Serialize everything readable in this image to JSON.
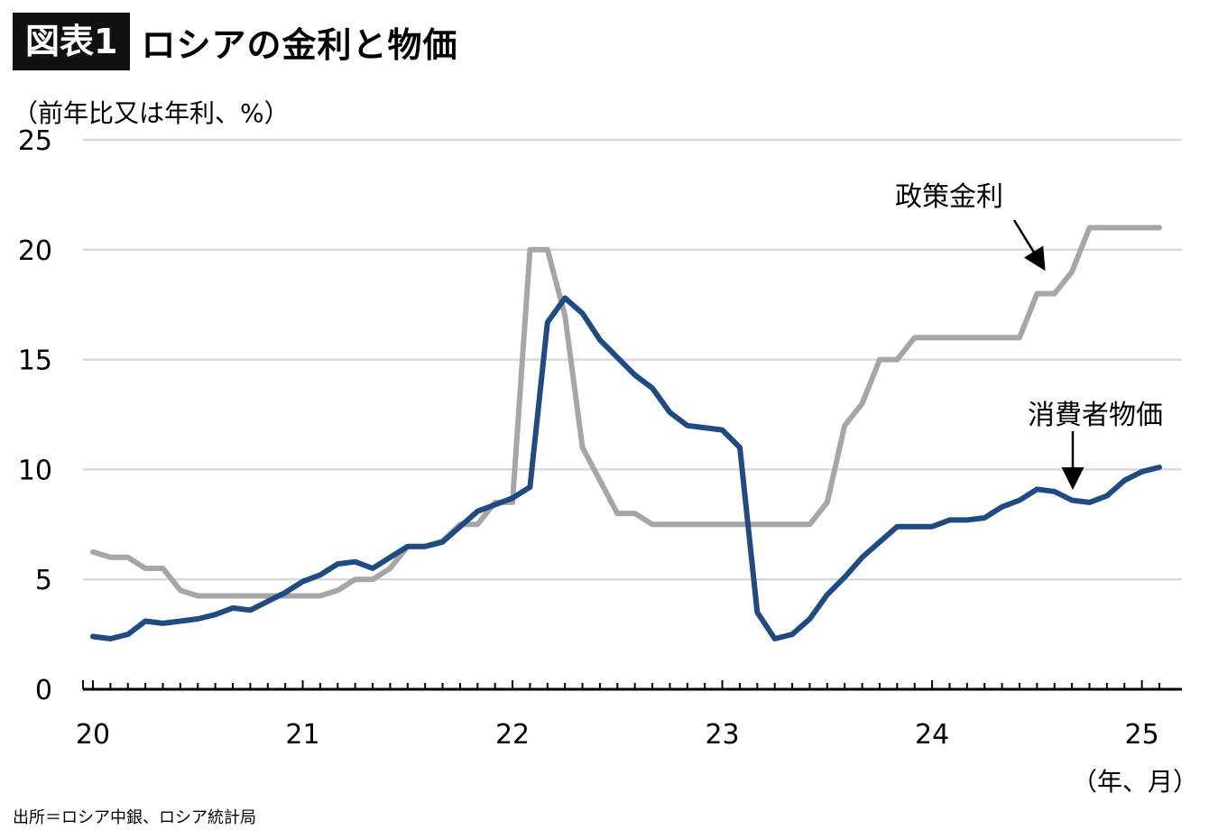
{
  "header": {
    "badge": "図表1",
    "title": "ロシアの金利と物価"
  },
  "unit_label": "（前年比又は年利、%）",
  "x_unit": "（年、月）",
  "source": "出所＝ロシア中銀、ロシア統計局",
  "colors": {
    "policy_rate": "#a6a6a6",
    "cpi": "#1f4a82",
    "grid": "#d9d9d9"
  },
  "chart_data": {
    "type": "line",
    "title": "ロシアの金利と物価",
    "ylim": [
      0,
      25
    ],
    "yticks": [
      0,
      5,
      10,
      15,
      20,
      25
    ],
    "xlim": [
      0,
      61
    ],
    "x_tick_labels": [
      "20",
      "21",
      "22",
      "23",
      "24",
      "25"
    ],
    "x_tick_positions": [
      0,
      12,
      24,
      36,
      48,
      60
    ],
    "grid": true,
    "series": [
      {
        "name": "政策金利",
        "color": "#a6a6a6",
        "x": [
          0,
          1,
          2,
          3,
          4,
          5,
          6,
          7,
          8,
          9,
          10,
          11,
          12,
          13,
          14,
          15,
          16,
          17,
          18,
          19,
          20,
          21,
          22,
          23,
          24,
          25,
          26,
          27,
          28,
          29,
          30,
          31,
          32,
          33,
          34,
          35,
          36,
          37,
          38,
          39,
          40,
          41,
          42,
          43,
          44,
          45,
          46,
          47,
          48,
          49,
          50,
          51,
          52,
          53,
          54,
          55,
          56,
          57,
          58,
          59,
          60,
          61
        ],
        "values": [
          6.25,
          6,
          6,
          5.5,
          5.5,
          4.5,
          4.25,
          4.25,
          4.25,
          4.25,
          4.25,
          4.25,
          4.25,
          4.25,
          4.5,
          5,
          5,
          5.5,
          6.5,
          6.5,
          6.75,
          7.5,
          7.5,
          8.5,
          8.5,
          20,
          20,
          17,
          11,
          9.5,
          8,
          8,
          7.5,
          7.5,
          7.5,
          7.5,
          7.5,
          7.5,
          7.5,
          7.5,
          7.5,
          7.5,
          8.5,
          12,
          13,
          15,
          15,
          16,
          16,
          16,
          16,
          16,
          16,
          16,
          18,
          18,
          19,
          21,
          21,
          21,
          21,
          21
        ]
      },
      {
        "name": "消費者物価",
        "color": "#1f4a82",
        "x": [
          0,
          1,
          2,
          3,
          4,
          5,
          6,
          7,
          8,
          9,
          10,
          11,
          12,
          13,
          14,
          15,
          16,
          17,
          18,
          19,
          20,
          21,
          22,
          23,
          24,
          25,
          26,
          27,
          28,
          29,
          30,
          31,
          32,
          33,
          34,
          35,
          36,
          37,
          38,
          39,
          40,
          41,
          42,
          43,
          44,
          45,
          46,
          47,
          48,
          49,
          50,
          51,
          52,
          53,
          54,
          55,
          56,
          57,
          58,
          59,
          60,
          61
        ],
        "values": [
          2.4,
          2.3,
          2.5,
          3.1,
          3.0,
          3.1,
          3.2,
          3.4,
          3.7,
          3.6,
          4.0,
          4.4,
          4.9,
          5.2,
          5.7,
          5.8,
          5.5,
          6.0,
          6.5,
          6.5,
          6.7,
          7.4,
          8.1,
          8.4,
          8.7,
          9.2,
          16.7,
          17.8,
          17.1,
          15.9,
          15.1,
          14.3,
          13.7,
          12.6,
          12.0,
          11.9,
          11.8,
          11.0,
          3.5,
          2.3,
          2.5,
          3.2,
          4.3,
          5.1,
          6.0,
          6.7,
          7.4,
          7.4,
          7.4,
          7.7,
          7.7,
          7.8,
          8.3,
          8.6,
          9.1,
          9.0,
          8.6,
          8.5,
          8.8,
          9.5,
          9.9,
          10.1
        ]
      }
    ],
    "annotations": [
      {
        "text": "政策金利",
        "series": "政策金利"
      },
      {
        "text": "消費者物価",
        "series": "消費者物価"
      }
    ]
  }
}
